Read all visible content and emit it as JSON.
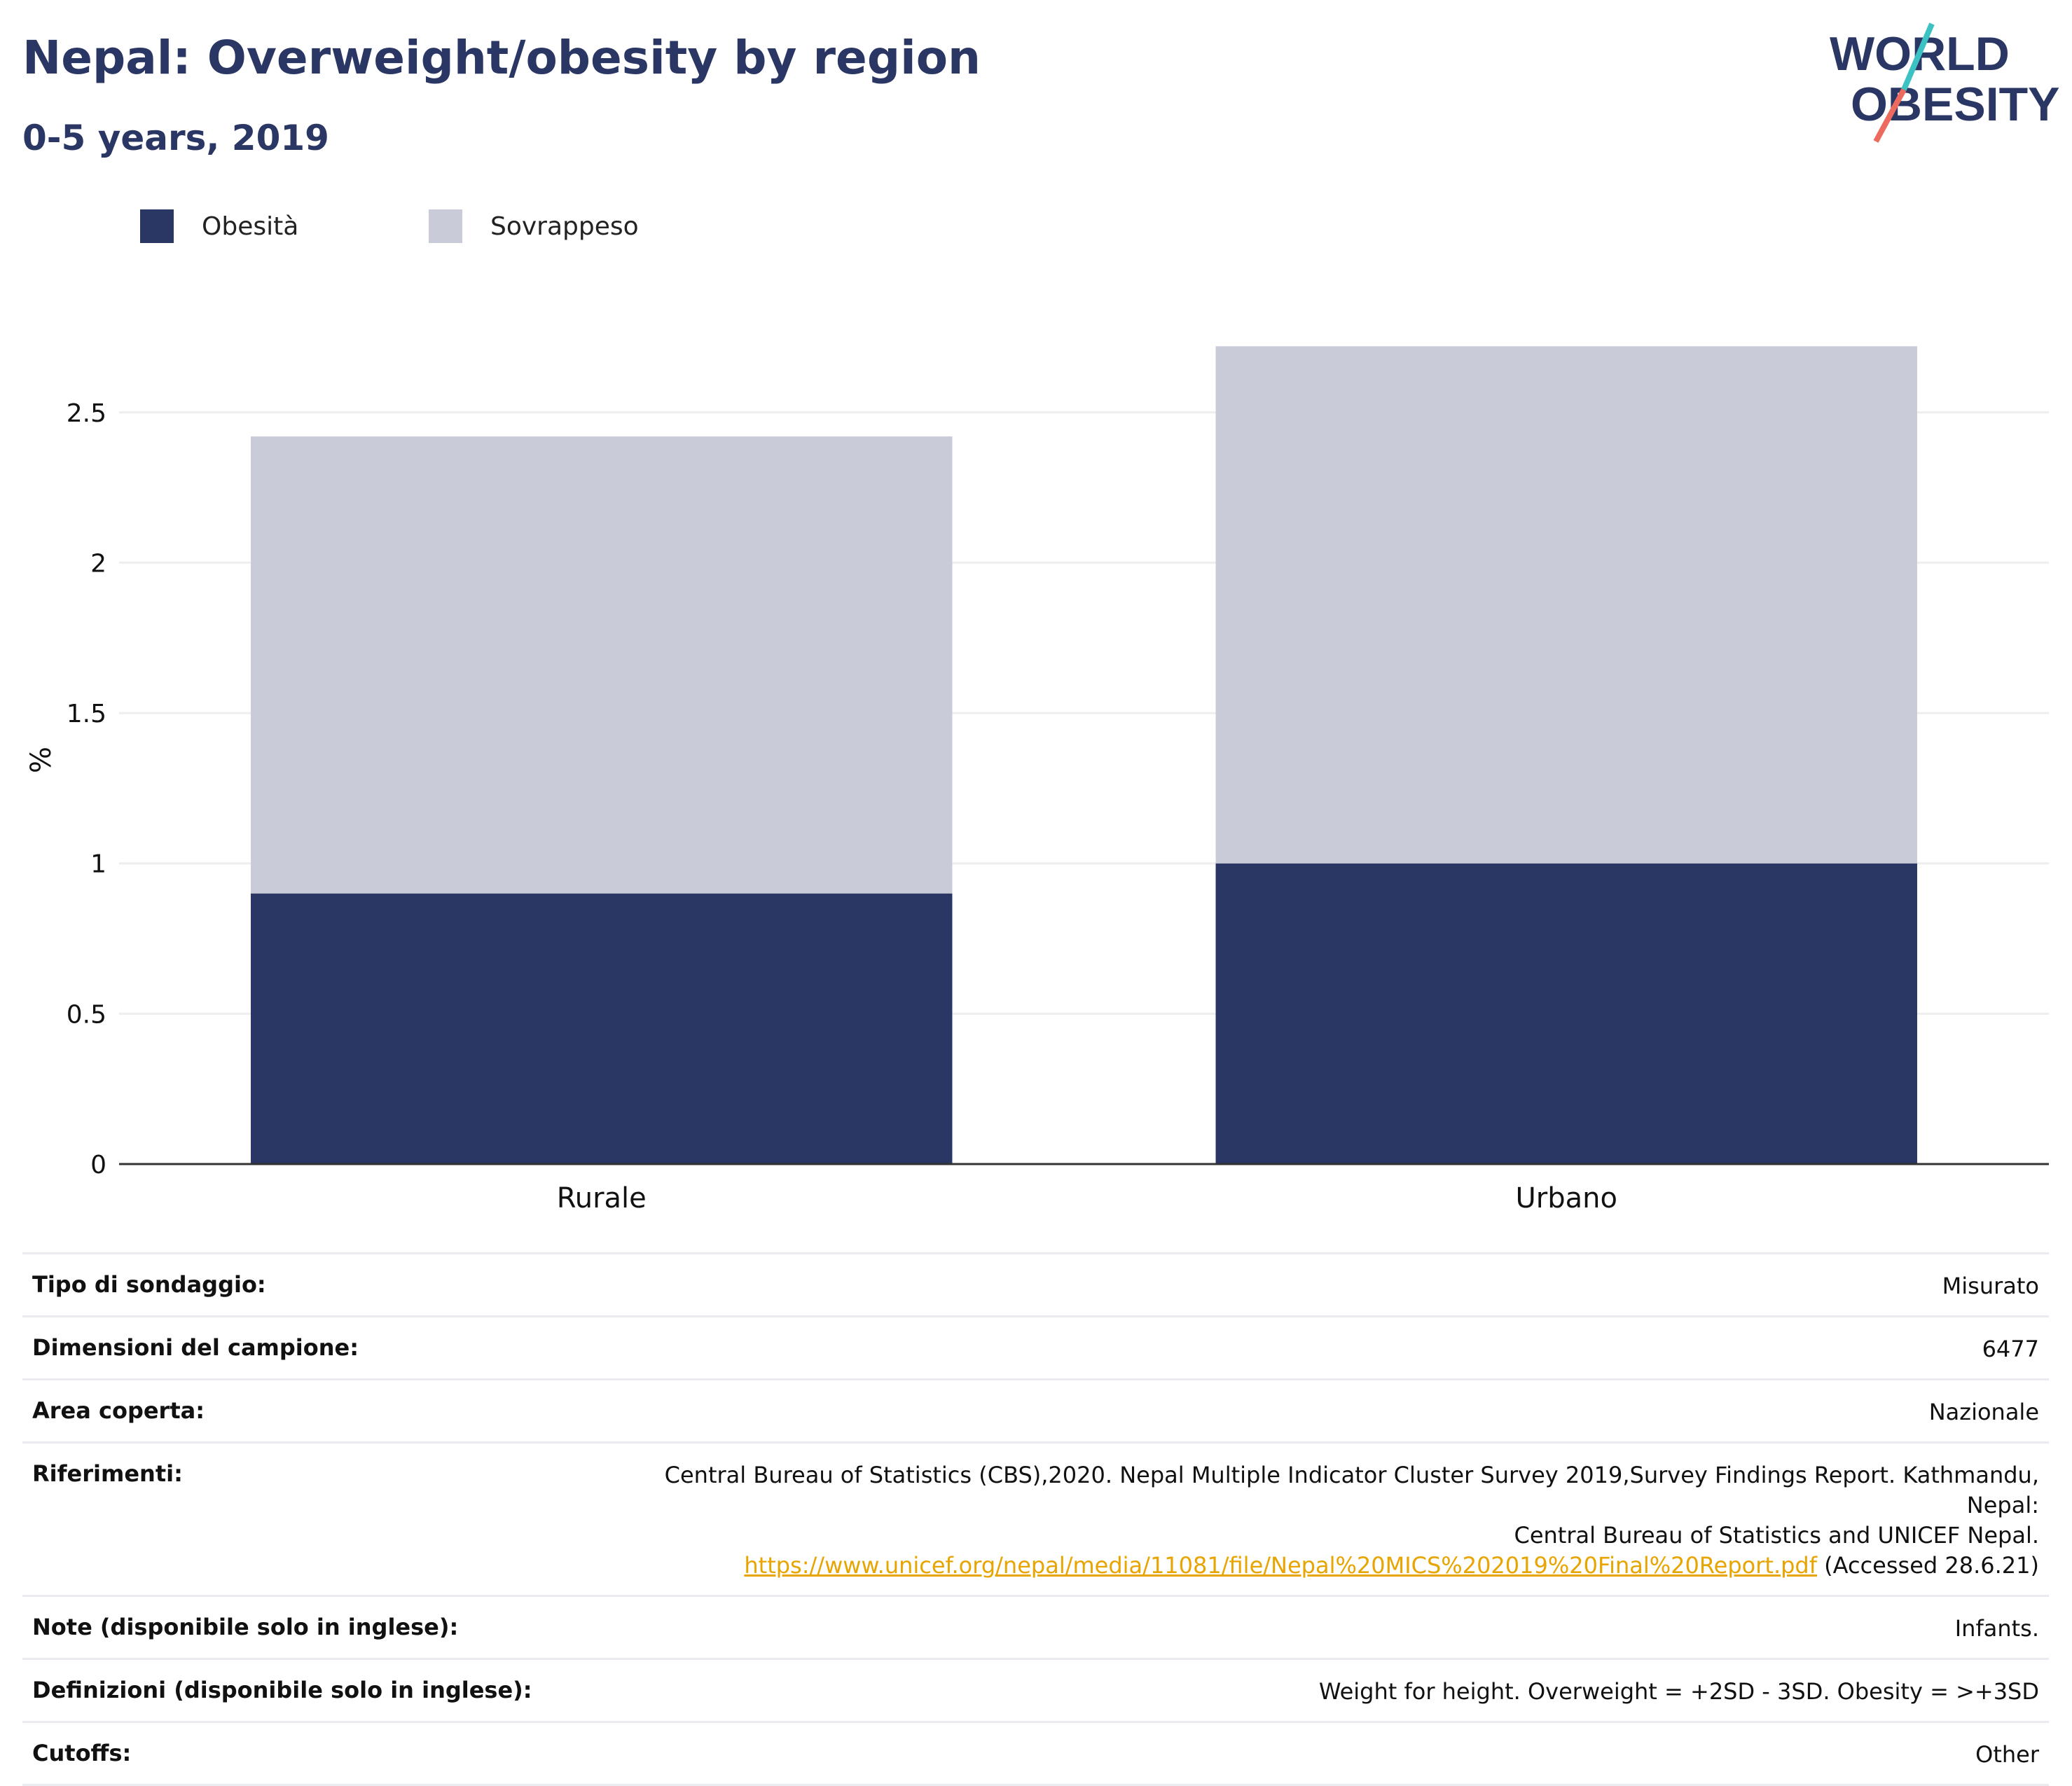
{
  "header": {
    "title": "Nepal: Overweight/obesity by region",
    "subtitle": "0-5 years, 2019"
  },
  "logo": {
    "line1": "WORLD",
    "line2": "OBESITY",
    "text_color": "#2a3663",
    "slash_colors": [
      "#3cc2c3",
      "#ec6a5e"
    ]
  },
  "colors": {
    "obesity": "#2a3663",
    "overweight": "#c9ccd8",
    "axis": "#333333",
    "grid": "#eeeeee"
  },
  "chart_data": {
    "type": "bar",
    "stacked": true,
    "categories": [
      "Rurale",
      "Urbano"
    ],
    "series": [
      {
        "name": "Obesità",
        "values": [
          0.9,
          1.0
        ],
        "color": "#2a3663"
      },
      {
        "name": "Sovrappeso",
        "values": [
          1.52,
          1.72
        ],
        "color": "#c9ccd8"
      }
    ],
    "ylabel": "%",
    "ylim": [
      0,
      2.8
    ],
    "yticks": [
      "0",
      "0.5",
      "1",
      "1.5",
      "2",
      "2.5"
    ],
    "grid": true,
    "legend_position": "top-left"
  },
  "metadata": {
    "survey_type": {
      "label": "Tipo di sondaggio:",
      "value": "Misurato"
    },
    "sample_size": {
      "label": "Dimensioni del campione:",
      "value": "6477"
    },
    "area": {
      "label": "Area coperta:",
      "value": "Nazionale"
    },
    "references": {
      "label": "Riferimenti:",
      "line1": "Central Bureau of Statistics (CBS),2020. Nepal Multiple Indicator Cluster Survey 2019,Survey Findings Report. Kathmandu, Nepal:",
      "line2": "Central Bureau of Statistics and UNICEF Nepal.",
      "link": "https://www.unicef.org/nepal/media/11081/file/Nepal%20MICS%202019%20Final%20Report.pdf",
      "accessed": "(Accessed 28.6.21)"
    },
    "notes": {
      "label": "Note (disponibile solo in inglese):",
      "value": "Infants."
    },
    "definitions": {
      "label": "Definizioni (disponibile solo in inglese):",
      "value": "Weight for height. Overweight = +2SD - 3SD. Obesity = >+3SD"
    },
    "cutoffs": {
      "label": "Cutoffs:",
      "value": "Other"
    }
  }
}
